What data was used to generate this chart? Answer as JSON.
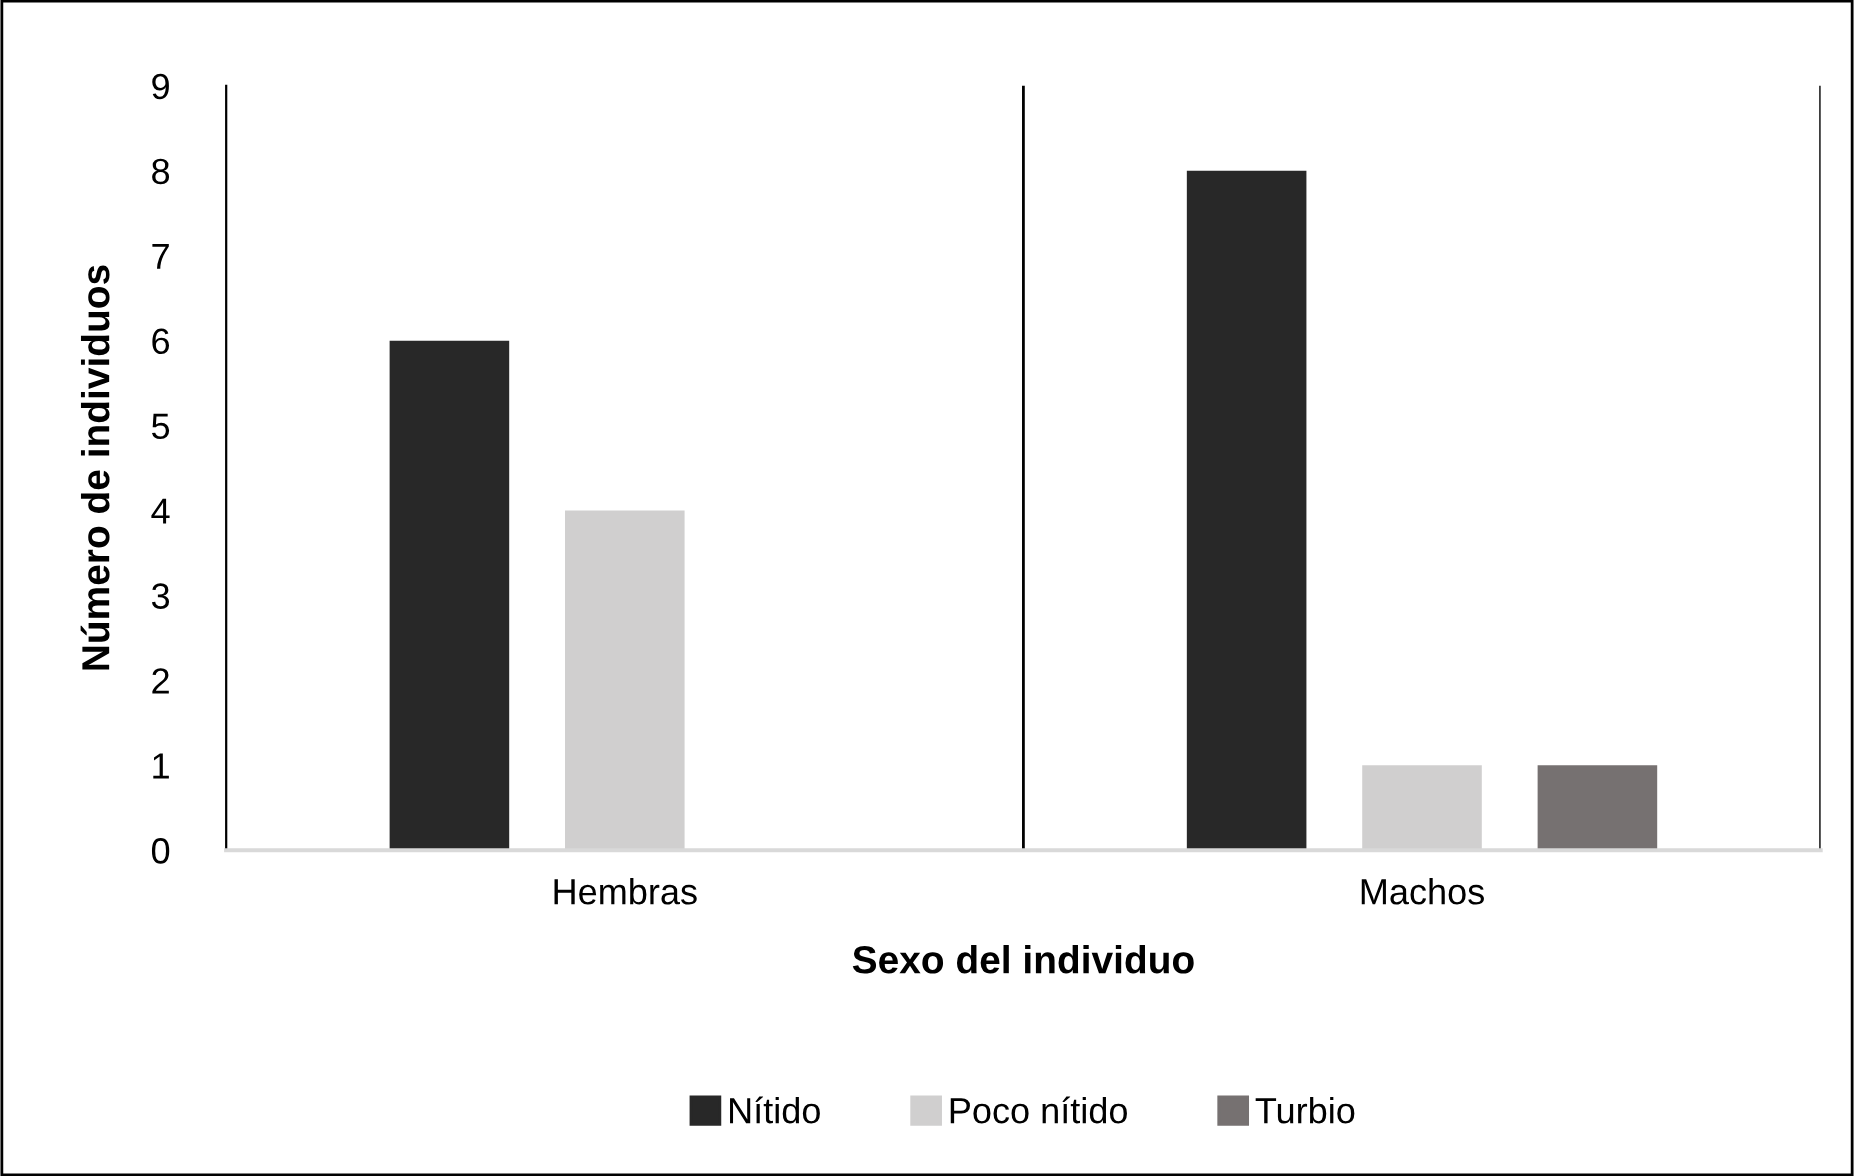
{
  "chart_data": {
    "type": "bar",
    "xlabel": "Sexo del individuo",
    "ylabel": "Número de individuos",
    "categories": [
      "Hembras",
      "Machos"
    ],
    "series": [
      {
        "name": "Nítido",
        "color": "#282828",
        "values": [
          6,
          8
        ]
      },
      {
        "name": "Poco nítido",
        "color": "#d0cfcf",
        "values": [
          4,
          1
        ]
      },
      {
        "name": "Turbio",
        "color": "#767171",
        "values": [
          0,
          1
        ]
      }
    ],
    "ylim": [
      0,
      9
    ],
    "yticks": [
      0,
      1,
      2,
      3,
      4,
      5,
      6,
      7,
      8,
      9
    ],
    "grid": "x",
    "legend": "bottom"
  }
}
